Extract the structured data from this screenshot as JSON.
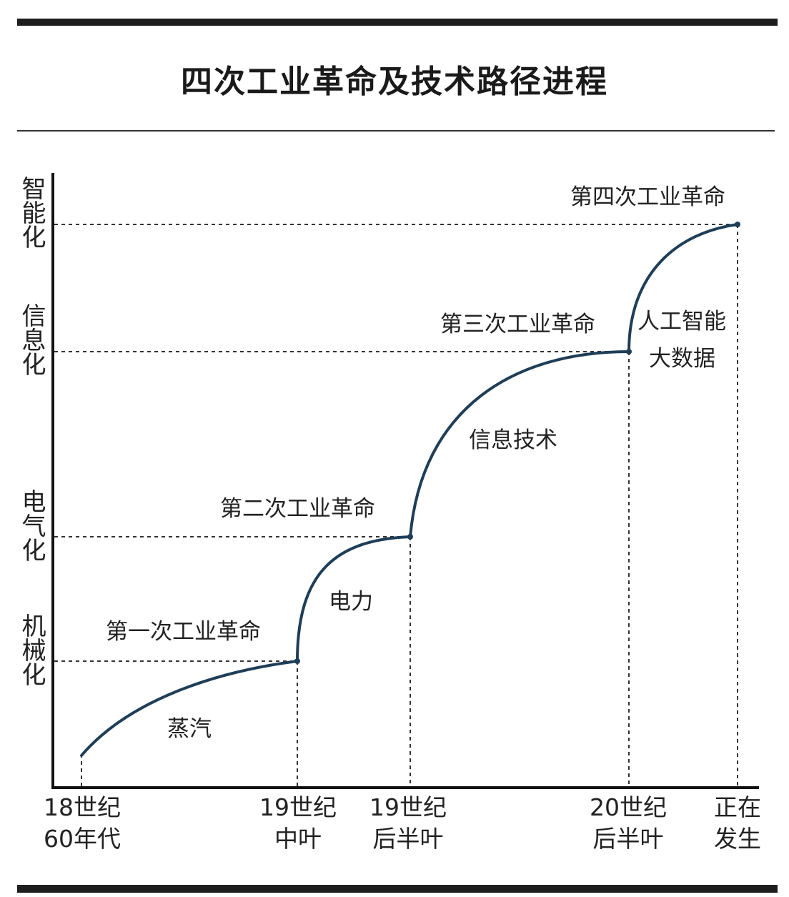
{
  "title": "四次工业革命及技术路径进程",
  "y_levels": [
    {
      "label": "智能化"
    },
    {
      "label": "信息化"
    },
    {
      "label": "电气化"
    },
    {
      "label": "机械化"
    }
  ],
  "x_ticks": [
    {
      "line1": "18世纪",
      "line2": "60年代"
    },
    {
      "line1": "19世纪",
      "line2": "中叶"
    },
    {
      "line1": "19世纪",
      "line2": "后半叶"
    },
    {
      "line1": "20世纪",
      "line2": "后半叶"
    },
    {
      "line1": "正在",
      "line2": "发生"
    }
  ],
  "revolutions": [
    {
      "name": "第一次工业革命",
      "tech": "蒸汽"
    },
    {
      "name": "第二次工业革命",
      "tech": "电力"
    },
    {
      "name": "第三次工业革命",
      "tech": "信息技术"
    },
    {
      "name": "第四次工业革命",
      "tech_line1": "人工智能",
      "tech_line2": "大数据"
    }
  ],
  "colors": {
    "curve": "#1f3e57",
    "axis": "#111111",
    "guide": "#333333"
  }
}
